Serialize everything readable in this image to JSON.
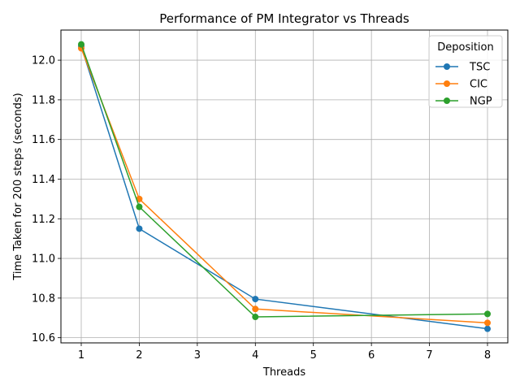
{
  "chart_data": {
    "type": "line",
    "title": "Performance of PM Integrator vs Threads",
    "xlabel": "Threads",
    "ylabel": "Time Taken for 200 steps (seconds)",
    "x": [
      1,
      2,
      4,
      8
    ],
    "xlim": [
      0.65,
      8.35
    ],
    "ylim": [
      10.574,
      12.152
    ],
    "xticks": [
      1,
      2,
      3,
      4,
      5,
      6,
      7,
      8
    ],
    "yticks": [
      10.6,
      10.8,
      11.0,
      11.2,
      11.4,
      11.6,
      11.8,
      12.0
    ],
    "ytick_labels": [
      "10.6",
      "10.8",
      "11.0",
      "11.2",
      "11.4",
      "11.6",
      "11.8",
      "12.0"
    ],
    "grid": true,
    "legend": {
      "title": "Deposition",
      "placement": "top-right"
    },
    "series": [
      {
        "name": "TSC",
        "color": "#1f77b4",
        "marker": "circle",
        "values": [
          12.07,
          11.15,
          10.795,
          10.645
        ]
      },
      {
        "name": "CIC",
        "color": "#ff7f0e",
        "marker": "circle",
        "values": [
          12.06,
          11.3,
          10.745,
          10.675
        ]
      },
      {
        "name": "NGP",
        "color": "#2ca02c",
        "marker": "circle",
        "values": [
          12.08,
          11.26,
          10.705,
          10.72
        ]
      }
    ]
  }
}
